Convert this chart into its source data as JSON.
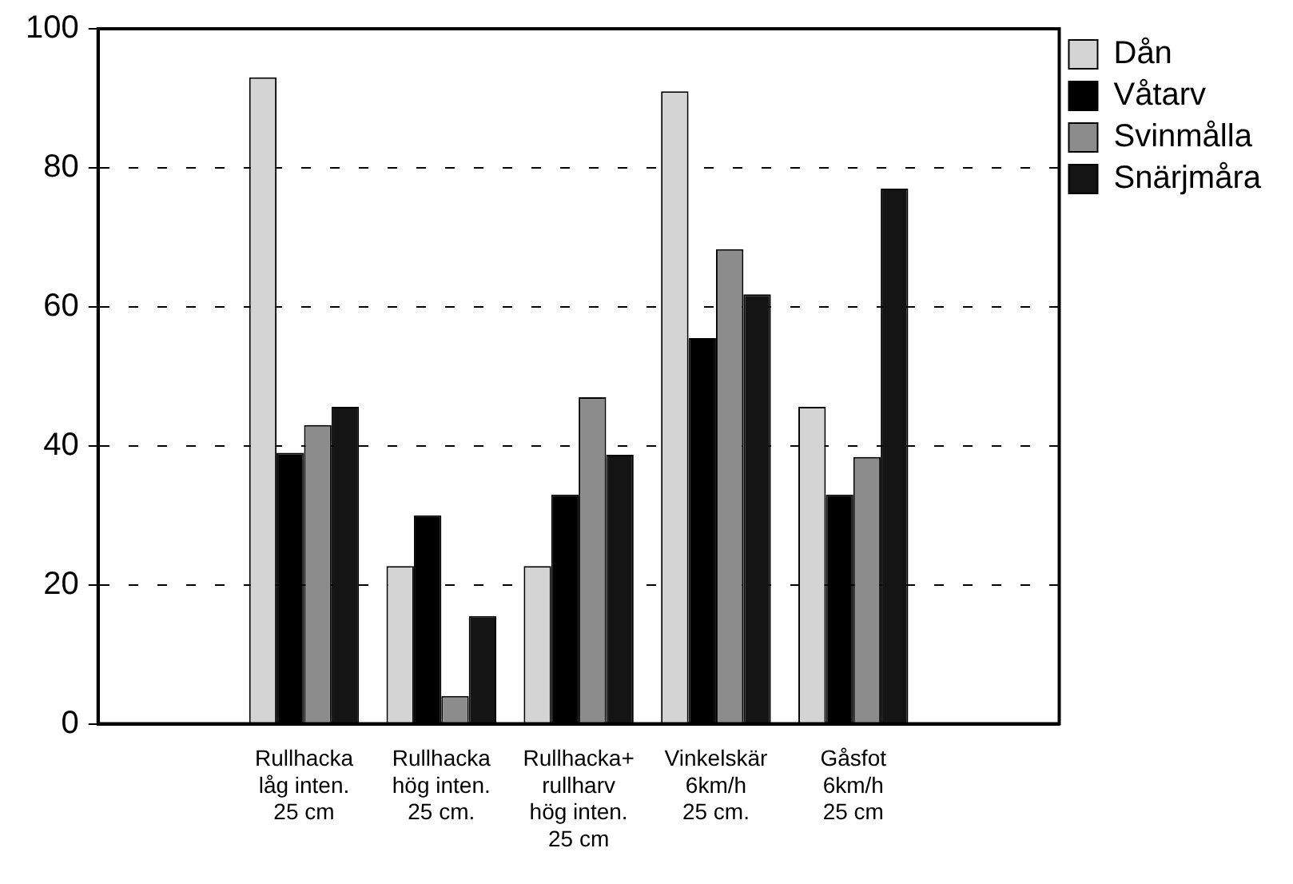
{
  "chart_data": {
    "type": "bar",
    "categories": [
      null,
      "Rullhacka\nlåg inten.\n25 cm",
      "Rullhacka\nhög inten.\n25 cm.",
      "Rullhacka+\nrullharv\nhög inten.\n25 cm",
      "Vinkelskär\n6km/h\n25 cm.",
      "Gåsfot\n6km/h\n25 cm",
      null
    ],
    "series": [
      {
        "name": "Dån",
        "color": "#d4d4d4",
        "values": [
          null,
          93,
          22.7,
          22.7,
          91,
          45.6,
          null
        ]
      },
      {
        "name": "Våtarv",
        "color": "#000000",
        "values": [
          null,
          39,
          30,
          33,
          55.5,
          33,
          null
        ]
      },
      {
        "name": "Svinmålla",
        "color": "#8c8c8c",
        "values": [
          null,
          43,
          4,
          47,
          68.3,
          38.4,
          null
        ]
      },
      {
        "name": "Snärjmåra",
        "color": "#141414",
        "values": [
          null,
          45.6,
          15.5,
          38.7,
          61.8,
          77,
          null
        ]
      }
    ],
    "ylim": [
      0,
      100
    ],
    "yticks": [
      0,
      20,
      40,
      60,
      80,
      100
    ],
    "grid": "y",
    "legend": "top right"
  }
}
